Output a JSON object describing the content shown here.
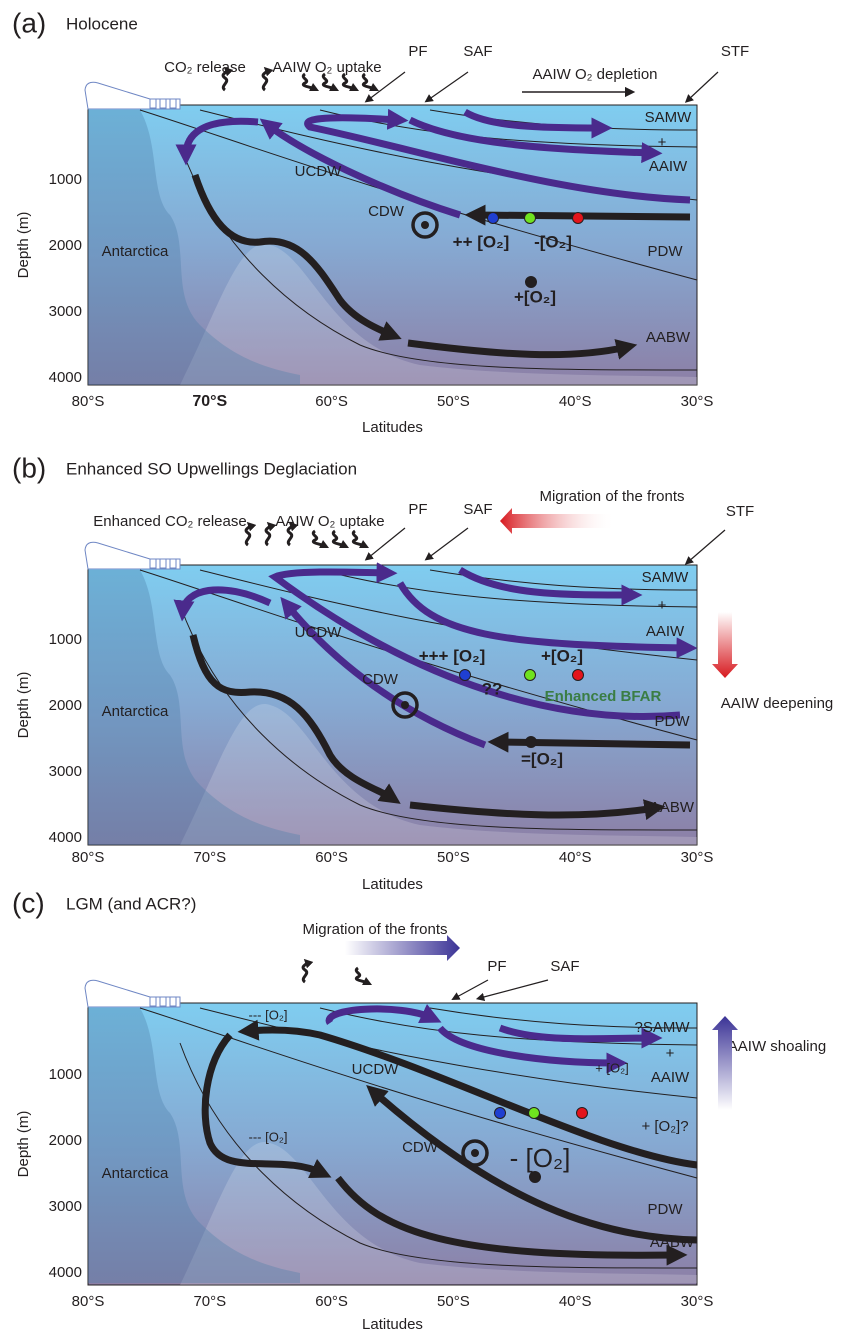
{
  "panels": [
    {
      "label": "(a)",
      "title": "Holocene",
      "annotations": [
        "CO₂ release",
        "AAIW O₂ uptake",
        "PF",
        "SAF",
        "AAIW O₂ depletion",
        "STF",
        "SAMW",
        "+",
        "AAIW",
        "UCDW",
        "CDW",
        "++ [O₂]",
        "-[O₂]",
        "PDW",
        "+[O₂]",
        "Antarctica",
        "AABW"
      ],
      "x_ticks": [
        "80°S",
        "70°S",
        "60°S",
        "50°S",
        "40°S",
        "30°S"
      ],
      "y_ticks": [
        "1000",
        "2000",
        "3000",
        "4000"
      ],
      "y_label": "Depth (m)",
      "x_label": "Latitudes"
    },
    {
      "label": "(b)",
      "title": "Enhanced SO Upwellings Deglaciation",
      "annotations": [
        "Enhanced CO₂ release",
        "AAIW O₂ uptake",
        "PF",
        "SAF",
        "Migration of the fronts",
        "STF",
        "SAMW",
        "+",
        "AAIW",
        "UCDW",
        "+++ [O₂]",
        "+[O₂]",
        "CDW",
        "??",
        "Enhanced BFAR",
        "AAIW deepening",
        "PDW",
        "Antarctica",
        "=[O₂]",
        "AABW"
      ],
      "x_ticks": [
        "80°S",
        "70°S",
        "60°S",
        "50°S",
        "40°S",
        "30°S"
      ],
      "y_ticks": [
        "1000",
        "2000",
        "3000",
        "4000"
      ],
      "y_label": "Depth (m)",
      "x_label": "Latitudes"
    },
    {
      "label": "(c)",
      "title": "LGM (and ACR?)",
      "annotations": [
        "Migration of the fronts",
        "PF",
        "SAF",
        "--- [O₂]",
        "?SAMW",
        "+",
        "AAIW",
        "UCDW",
        "+ [O₂]",
        "AAIW shoaling",
        "+ [O₂]?",
        "--- [O₂]",
        "CDW",
        "- [O₂]",
        "Antarctica",
        "PDW",
        "AABW"
      ],
      "x_ticks": [
        "80°S",
        "70°S",
        "60°S",
        "50°S",
        "40°S",
        "30°S"
      ],
      "y_ticks": [
        "1000",
        "2000",
        "3000",
        "4000"
      ],
      "y_label": "Depth (m)",
      "x_label": "Latitudes"
    }
  ]
}
